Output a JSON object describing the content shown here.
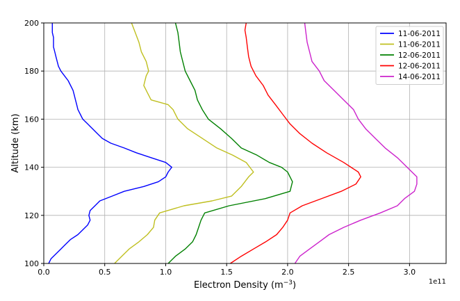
{
  "chart_data": {
    "type": "line",
    "xlabel": "Electron Density (m",
    "xlabel_sup": "−3",
    "xlabel_suffix": ")",
    "ylabel": "Altitude (km)",
    "x_offset_label": "1e11",
    "xlim": [
      0,
      3.3
    ],
    "ylim": [
      100,
      200
    ],
    "xticks": [
      0.0,
      0.5,
      1.0,
      1.5,
      2.0,
      2.5,
      3.0
    ],
    "xtick_labels": [
      "0.0",
      "0.5",
      "1.0",
      "1.5",
      "2.0",
      "2.5",
      "3.0"
    ],
    "yticks": [
      100,
      120,
      140,
      160,
      180,
      200
    ],
    "ytick_labels": [
      "100",
      "120",
      "140",
      "160",
      "180",
      "200"
    ],
    "grid": true,
    "legend_position": "top-right",
    "series": [
      {
        "name": "11-06-2011",
        "color": "#0000ff",
        "points": [
          [
            0.04,
            100
          ],
          [
            0.06,
            102
          ],
          [
            0.1,
            104
          ],
          [
            0.14,
            106
          ],
          [
            0.18,
            108
          ],
          [
            0.22,
            110
          ],
          [
            0.28,
            112
          ],
          [
            0.32,
            114
          ],
          [
            0.36,
            116
          ],
          [
            0.38,
            118
          ],
          [
            0.37,
            120
          ],
          [
            0.38,
            122
          ],
          [
            0.42,
            124
          ],
          [
            0.46,
            126
          ],
          [
            0.56,
            128
          ],
          [
            0.66,
            130
          ],
          [
            0.82,
            132
          ],
          [
            0.94,
            134
          ],
          [
            1.0,
            136
          ],
          [
            1.02,
            138
          ],
          [
            1.05,
            140
          ],
          [
            1.0,
            142
          ],
          [
            0.88,
            144
          ],
          [
            0.76,
            146
          ],
          [
            0.66,
            148
          ],
          [
            0.55,
            150
          ],
          [
            0.48,
            152
          ],
          [
            0.44,
            154
          ],
          [
            0.4,
            156
          ],
          [
            0.36,
            158
          ],
          [
            0.32,
            160
          ],
          [
            0.3,
            162
          ],
          [
            0.28,
            164
          ],
          [
            0.27,
            166
          ],
          [
            0.26,
            168
          ],
          [
            0.25,
            170
          ],
          [
            0.24,
            172
          ],
          [
            0.22,
            174
          ],
          [
            0.2,
            176
          ],
          [
            0.17,
            178
          ],
          [
            0.14,
            180
          ],
          [
            0.12,
            182
          ],
          [
            0.11,
            184
          ],
          [
            0.1,
            186
          ],
          [
            0.09,
            188
          ],
          [
            0.08,
            190
          ],
          [
            0.08,
            192
          ],
          [
            0.08,
            194
          ],
          [
            0.07,
            196
          ],
          [
            0.07,
            198
          ],
          [
            0.07,
            200
          ]
        ]
      },
      {
        "name": "11-06-2011",
        "color": "#bfbf1f",
        "points": [
          [
            0.58,
            100
          ],
          [
            0.64,
            103
          ],
          [
            0.7,
            106
          ],
          [
            0.78,
            109
          ],
          [
            0.85,
            112
          ],
          [
            0.9,
            115
          ],
          [
            0.91,
            118
          ],
          [
            0.95,
            121
          ],
          [
            1.15,
            124
          ],
          [
            1.38,
            126
          ],
          [
            1.54,
            128
          ],
          [
            1.62,
            132
          ],
          [
            1.68,
            136
          ],
          [
            1.72,
            138
          ],
          [
            1.66,
            142
          ],
          [
            1.55,
            145
          ],
          [
            1.42,
            148
          ],
          [
            1.3,
            152
          ],
          [
            1.18,
            156
          ],
          [
            1.1,
            160
          ],
          [
            1.06,
            164
          ],
          [
            1.02,
            166
          ],
          [
            0.88,
            168
          ],
          [
            0.85,
            171
          ],
          [
            0.82,
            174
          ],
          [
            0.84,
            178
          ],
          [
            0.86,
            180
          ],
          [
            0.84,
            184
          ],
          [
            0.8,
            188
          ],
          [
            0.78,
            192
          ],
          [
            0.75,
            196
          ],
          [
            0.72,
            200
          ]
        ]
      },
      {
        "name": "12-06-2011",
        "color": "#008000",
        "points": [
          [
            1.02,
            100
          ],
          [
            1.08,
            103
          ],
          [
            1.16,
            106
          ],
          [
            1.22,
            109
          ],
          [
            1.25,
            112
          ],
          [
            1.27,
            115
          ],
          [
            1.29,
            118
          ],
          [
            1.32,
            121
          ],
          [
            1.52,
            124
          ],
          [
            1.82,
            127
          ],
          [
            2.02,
            130
          ],
          [
            2.04,
            134
          ],
          [
            2.0,
            138
          ],
          [
            1.95,
            140
          ],
          [
            1.85,
            142
          ],
          [
            1.75,
            145
          ],
          [
            1.62,
            148
          ],
          [
            1.54,
            152
          ],
          [
            1.45,
            156
          ],
          [
            1.35,
            160
          ],
          [
            1.3,
            164
          ],
          [
            1.26,
            168
          ],
          [
            1.24,
            172
          ],
          [
            1.2,
            176
          ],
          [
            1.16,
            180
          ],
          [
            1.14,
            184
          ],
          [
            1.12,
            188
          ],
          [
            1.11,
            192
          ],
          [
            1.1,
            196
          ],
          [
            1.08,
            200
          ]
        ]
      },
      {
        "name": "12-06-2011",
        "color": "#ff0000",
        "points": [
          [
            1.53,
            100
          ],
          [
            1.62,
            103
          ],
          [
            1.72,
            106
          ],
          [
            1.82,
            109
          ],
          [
            1.91,
            112
          ],
          [
            1.96,
            115
          ],
          [
            2.0,
            118
          ],
          [
            2.02,
            121
          ],
          [
            2.12,
            124
          ],
          [
            2.28,
            127
          ],
          [
            2.44,
            130
          ],
          [
            2.56,
            133
          ],
          [
            2.6,
            136
          ],
          [
            2.58,
            138
          ],
          [
            2.46,
            142
          ],
          [
            2.32,
            146
          ],
          [
            2.2,
            150
          ],
          [
            2.1,
            154
          ],
          [
            2.02,
            158
          ],
          [
            1.96,
            162
          ],
          [
            1.9,
            166
          ],
          [
            1.84,
            170
          ],
          [
            1.8,
            174
          ],
          [
            1.74,
            178
          ],
          [
            1.7,
            182
          ],
          [
            1.68,
            186
          ],
          [
            1.67,
            190
          ],
          [
            1.66,
            194
          ],
          [
            1.65,
            197
          ],
          [
            1.66,
            200
          ]
        ]
      },
      {
        "name": "14-06-2011",
        "color": "#cc22cc",
        "points": [
          [
            2.06,
            100
          ],
          [
            2.1,
            103
          ],
          [
            2.18,
            106
          ],
          [
            2.26,
            109
          ],
          [
            2.34,
            112
          ],
          [
            2.46,
            115
          ],
          [
            2.6,
            118
          ],
          [
            2.76,
            121
          ],
          [
            2.9,
            124
          ],
          [
            2.96,
            127
          ],
          [
            3.04,
            130
          ],
          [
            3.06,
            133
          ],
          [
            3.06,
            136
          ],
          [
            2.98,
            140
          ],
          [
            2.9,
            144
          ],
          [
            2.8,
            148
          ],
          [
            2.72,
            152
          ],
          [
            2.64,
            156
          ],
          [
            2.58,
            160
          ],
          [
            2.54,
            164
          ],
          [
            2.46,
            168
          ],
          [
            2.38,
            172
          ],
          [
            2.3,
            176
          ],
          [
            2.26,
            180
          ],
          [
            2.2,
            184
          ],
          [
            2.18,
            188
          ],
          [
            2.16,
            192
          ],
          [
            2.15,
            196
          ],
          [
            2.14,
            200
          ]
        ]
      }
    ]
  }
}
